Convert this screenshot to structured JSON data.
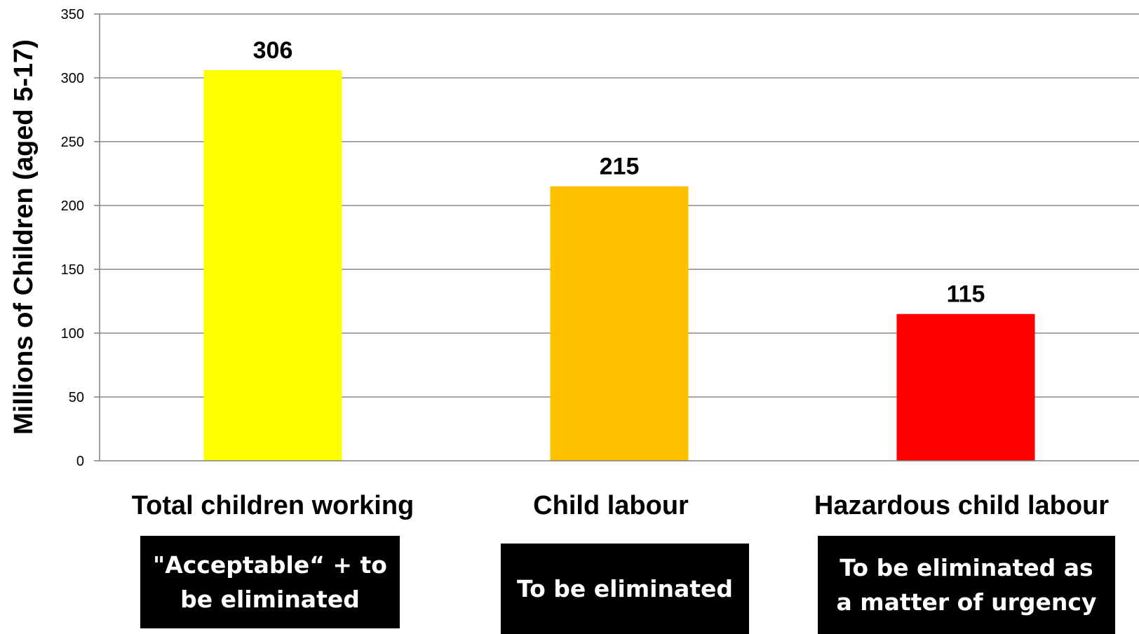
{
  "chart_data": {
    "type": "bar",
    "categories": [
      "Total children working",
      "Child labour",
      "Hazardous child labour"
    ],
    "values": [
      306,
      215,
      115
    ],
    "data_labels": [
      "306",
      "215",
      "115"
    ],
    "colors": [
      "#ffff00",
      "#ffc000",
      "#ff0000"
    ],
    "ylabel": "Millions of Children (aged 5-17)",
    "ylim": [
      0,
      350
    ],
    "yticks": [
      0,
      50,
      100,
      150,
      200,
      250,
      300,
      350
    ],
    "grid": true,
    "legend": "none"
  },
  "annotations": [
    {
      "text": "\"Acceptable“ + to be eliminated"
    },
    {
      "text": "To be eliminated"
    },
    {
      "text": "To be eliminated as a matter of urgency"
    }
  ]
}
